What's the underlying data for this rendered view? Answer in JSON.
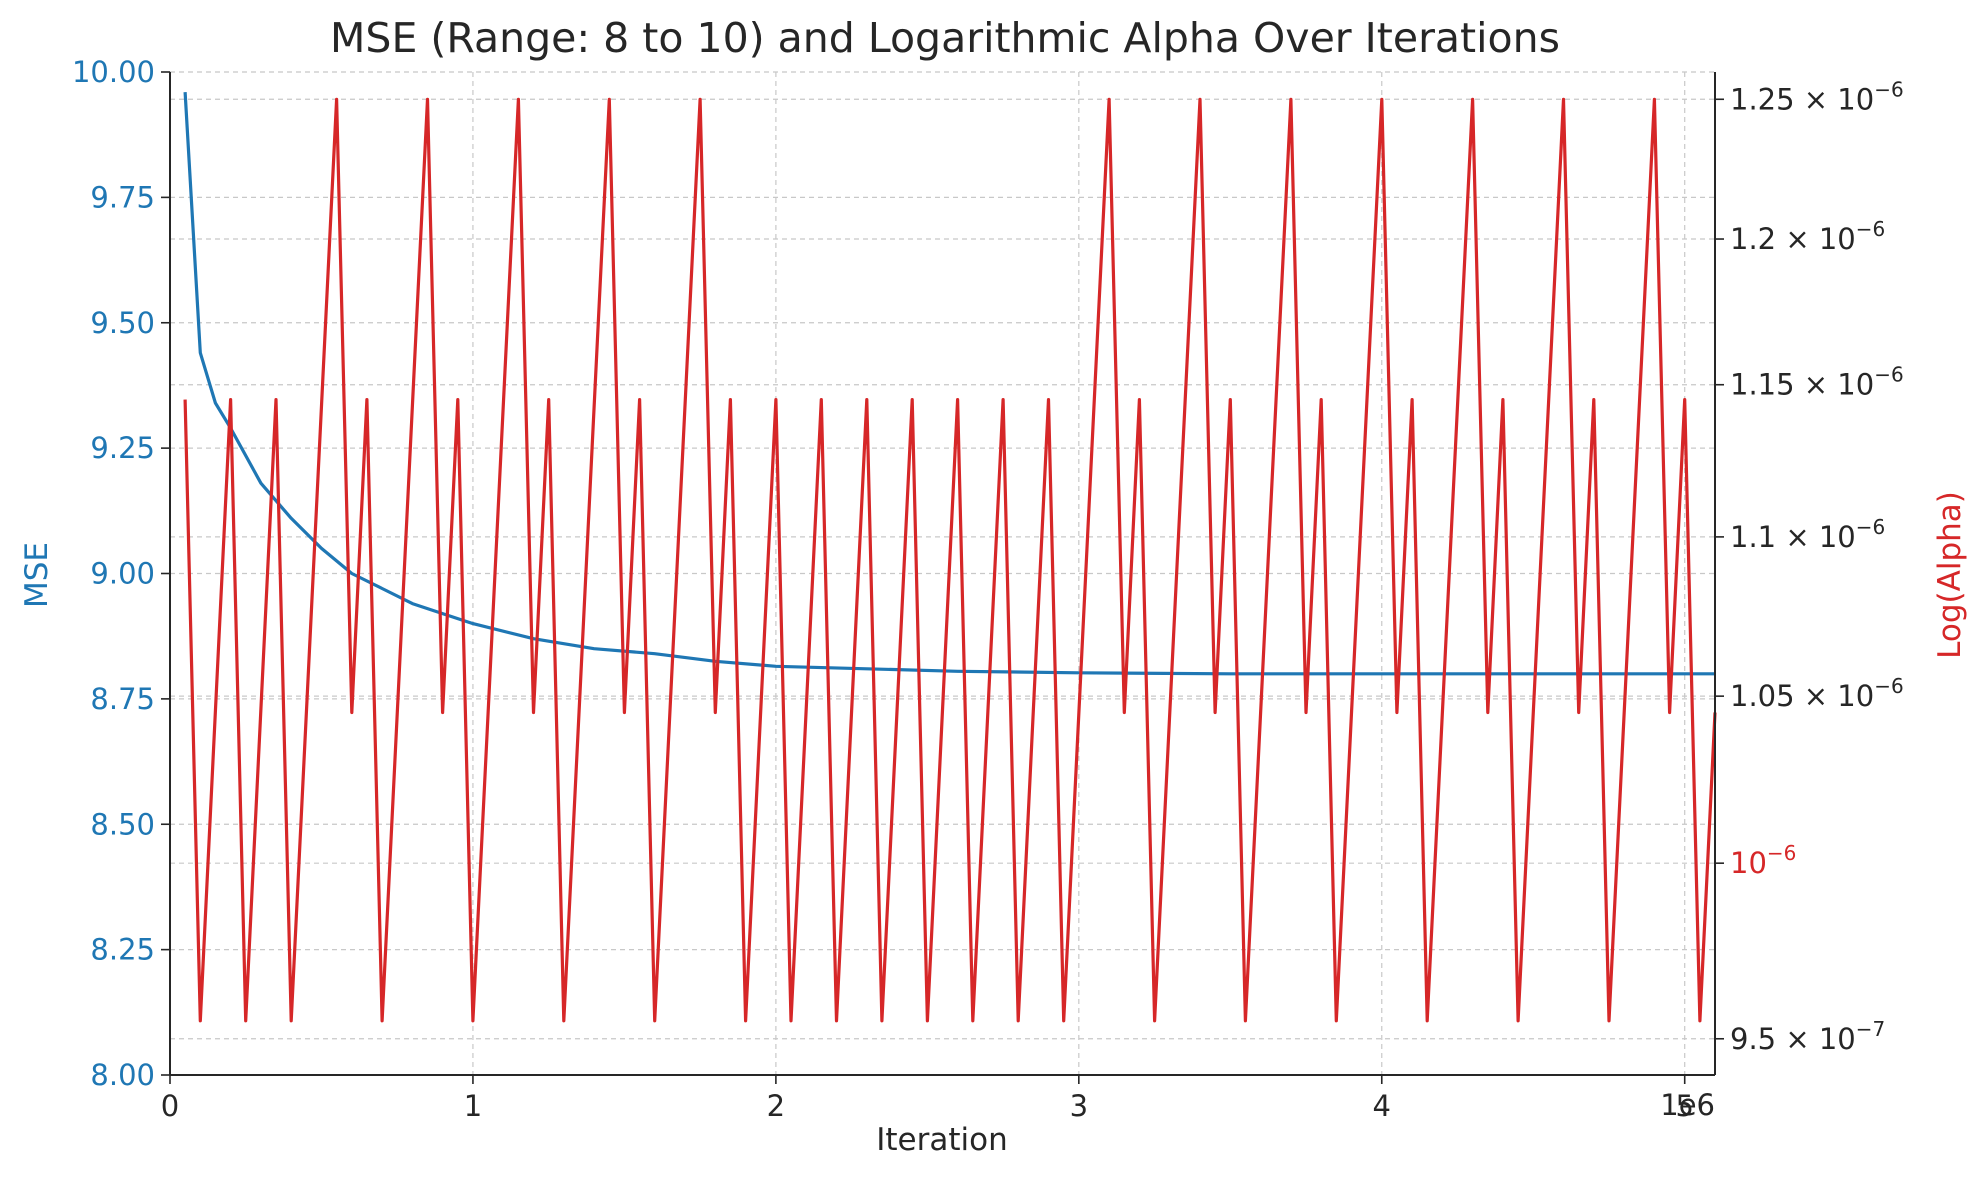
{
  "chart_data": {
    "type": "line",
    "title": "MSE (Range: 8 to 10) and Logarithmic Alpha Over Iterations",
    "xlabel": "Iteration",
    "x_offset_label": "1e6",
    "xlim": [
      0,
      5100000
    ],
    "x_ticks": [
      0,
      1000000,
      2000000,
      3000000,
      4000000,
      5000000
    ],
    "x_tick_labels": [
      "0",
      "1",
      "2",
      "3",
      "4",
      "5"
    ],
    "grid": true,
    "left_axis": {
      "label": "MSE",
      "color": "#1f77b4",
      "ylim": [
        8.0,
        10.0
      ],
      "ticks": [
        8.0,
        8.25,
        8.5,
        8.75,
        9.0,
        9.25,
        9.5,
        9.75,
        10.0
      ],
      "tick_labels": [
        "8.00",
        "8.25",
        "8.50",
        "8.75",
        "9.00",
        "9.25",
        "9.50",
        "9.75",
        "10.00"
      ]
    },
    "right_axis": {
      "label": "Log(Alpha)",
      "color": "#d62728",
      "scale": "log",
      "ylim": [
        9.4e-07,
        1.26e-06
      ],
      "ticks": [
        {
          "value": 1.25e-06,
          "mantissa": "1.25",
          "label": "1.25 × 10",
          "exponent": "−6",
          "color": "#262626"
        },
        {
          "value": 1.2e-06,
          "mantissa": "1.2",
          "label": "1.2 × 10",
          "exponent": "−6",
          "color": "#262626"
        },
        {
          "value": 1.15e-06,
          "mantissa": "1.15",
          "label": "1.15 × 10",
          "exponent": "−6",
          "color": "#262626"
        },
        {
          "value": 1.1e-06,
          "mantissa": "1.1",
          "label": "1.1 × 10",
          "exponent": "−6",
          "color": "#262626"
        },
        {
          "value": 1.05e-06,
          "mantissa": "1.05",
          "label": "1.05 × 10",
          "exponent": "−6",
          "color": "#262626"
        },
        {
          "value": 1e-06,
          "mantissa": "",
          "label": "10",
          "exponent": "−6",
          "color": "#d62728"
        },
        {
          "value": 9.5e-07,
          "mantissa": "9.5",
          "label": "9.5 × 10",
          "exponent": "−7",
          "color": "#262626"
        }
      ]
    },
    "series": [
      {
        "name": "MSE",
        "axis": "left",
        "color": "#1f77b4",
        "x": [
          50000,
          100000,
          150000,
          200000,
          300000,
          400000,
          500000,
          600000,
          700000,
          800000,
          900000,
          1000000,
          1200000,
          1400000,
          1600000,
          1800000,
          2000000,
          2300000,
          2600000,
          3000000,
          3500000,
          4000000,
          4500000,
          5100000
        ],
        "values": [
          9.96,
          9.44,
          9.34,
          9.29,
          9.18,
          9.11,
          9.05,
          9.0,
          8.97,
          8.94,
          8.92,
          8.9,
          8.87,
          8.85,
          8.84,
          8.825,
          8.815,
          8.81,
          8.805,
          8.802,
          8.8,
          8.8,
          8.8,
          8.8
        ]
      },
      {
        "name": "Log(Alpha)",
        "axis": "right",
        "color": "#d62728",
        "x": [
          50000,
          100000,
          200000,
          250000,
          350000,
          400000,
          550000,
          600000,
          650000,
          700000,
          850000,
          900000,
          950000,
          1000000,
          1150000,
          1200000,
          1250000,
          1300000,
          1450000,
          1500000,
          1550000,
          1600000,
          1750000,
          1800000,
          1850000,
          1900000,
          2000000,
          2050000,
          2150000,
          2200000,
          2300000,
          2350000,
          2450000,
          2500000,
          2600000,
          2650000,
          2750000,
          2800000,
          2900000,
          2950000,
          3100000,
          3150000,
          3200000,
          3250000,
          3400000,
          3450000,
          3500000,
          3550000,
          3700000,
          3750000,
          3800000,
          3850000,
          4000000,
          4050000,
          4100000,
          4150000,
          4300000,
          4350000,
          4400000,
          4450000,
          4600000,
          4650000,
          4700000,
          4750000,
          4900000,
          4950000,
          5000000,
          5050000,
          5100000
        ],
        "values": [
          1.145e-06,
          9.55e-07,
          1.145e-06,
          9.55e-07,
          1.145e-06,
          9.55e-07,
          1.25e-06,
          1.045e-06,
          1.145e-06,
          9.55e-07,
          1.25e-06,
          1.045e-06,
          1.145e-06,
          9.55e-07,
          1.25e-06,
          1.045e-06,
          1.145e-06,
          9.55e-07,
          1.25e-06,
          1.045e-06,
          1.145e-06,
          9.55e-07,
          1.25e-06,
          1.045e-06,
          1.145e-06,
          9.55e-07,
          1.145e-06,
          9.55e-07,
          1.145e-06,
          9.55e-07,
          1.145e-06,
          9.55e-07,
          1.145e-06,
          9.55e-07,
          1.145e-06,
          9.55e-07,
          1.145e-06,
          9.55e-07,
          1.145e-06,
          9.55e-07,
          1.25e-06,
          1.045e-06,
          1.145e-06,
          9.55e-07,
          1.25e-06,
          1.045e-06,
          1.145e-06,
          9.55e-07,
          1.25e-06,
          1.045e-06,
          1.145e-06,
          9.55e-07,
          1.25e-06,
          1.045e-06,
          1.145e-06,
          9.55e-07,
          1.25e-06,
          1.045e-06,
          1.145e-06,
          9.55e-07,
          1.25e-06,
          1.045e-06,
          1.145e-06,
          9.55e-07,
          1.25e-06,
          1.045e-06,
          1.145e-06,
          9.55e-07,
          1.045e-06
        ]
      }
    ]
  }
}
